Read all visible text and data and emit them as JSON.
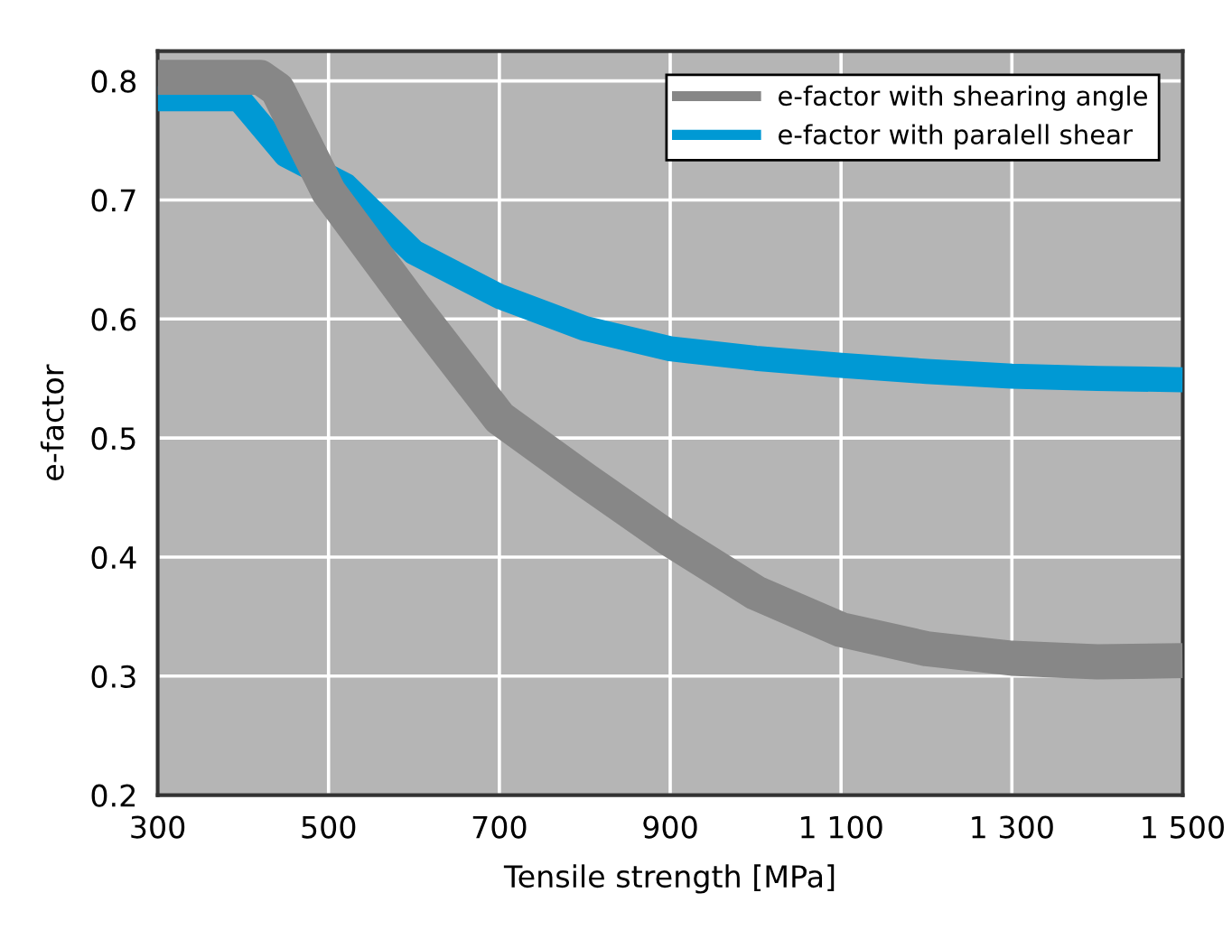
{
  "chart_data": {
    "type": "line",
    "xlabel": "Tensile strength [MPa]",
    "ylabel": "e-factor",
    "xlim": [
      300,
      1500
    ],
    "ylim": [
      0.2,
      0.825
    ],
    "xticks": [
      300,
      500,
      700,
      900,
      {
        "value": 1100,
        "label": "1 100"
      },
      {
        "value": 1300,
        "label": "1 300"
      },
      {
        "value": 1500,
        "label": "1 500"
      }
    ],
    "yticks": [
      0.2,
      0.3,
      0.4,
      0.5,
      0.6,
      0.7,
      0.8
    ],
    "grid": true,
    "legend": "top right",
    "marker": "none",
    "line_style": "solid",
    "series": [
      {
        "name": "e-factor with shearing angle",
        "color": "#878787",
        "x": [
          300,
          420,
          440,
          500,
          600,
          700,
          800,
          900,
          1000,
          1100,
          1200,
          1300,
          1400,
          1500
        ],
        "values": [
          0.803,
          0.803,
          0.793,
          0.707,
          0.61,
          0.517,
          0.465,
          0.415,
          0.37,
          0.339,
          0.323,
          0.315,
          0.312,
          0.313
        ]
      },
      {
        "name": "e-factor with paralell shear",
        "color": "#0099d4",
        "x": [
          300,
          395,
          450,
          520,
          600,
          700,
          800,
          900,
          1000,
          1100,
          1200,
          1300,
          1400,
          1500
        ],
        "values": [
          0.785,
          0.785,
          0.738,
          0.712,
          0.656,
          0.619,
          0.592,
          0.575,
          0.567,
          0.561,
          0.556,
          0.552,
          0.55,
          0.549
        ]
      }
    ]
  }
}
